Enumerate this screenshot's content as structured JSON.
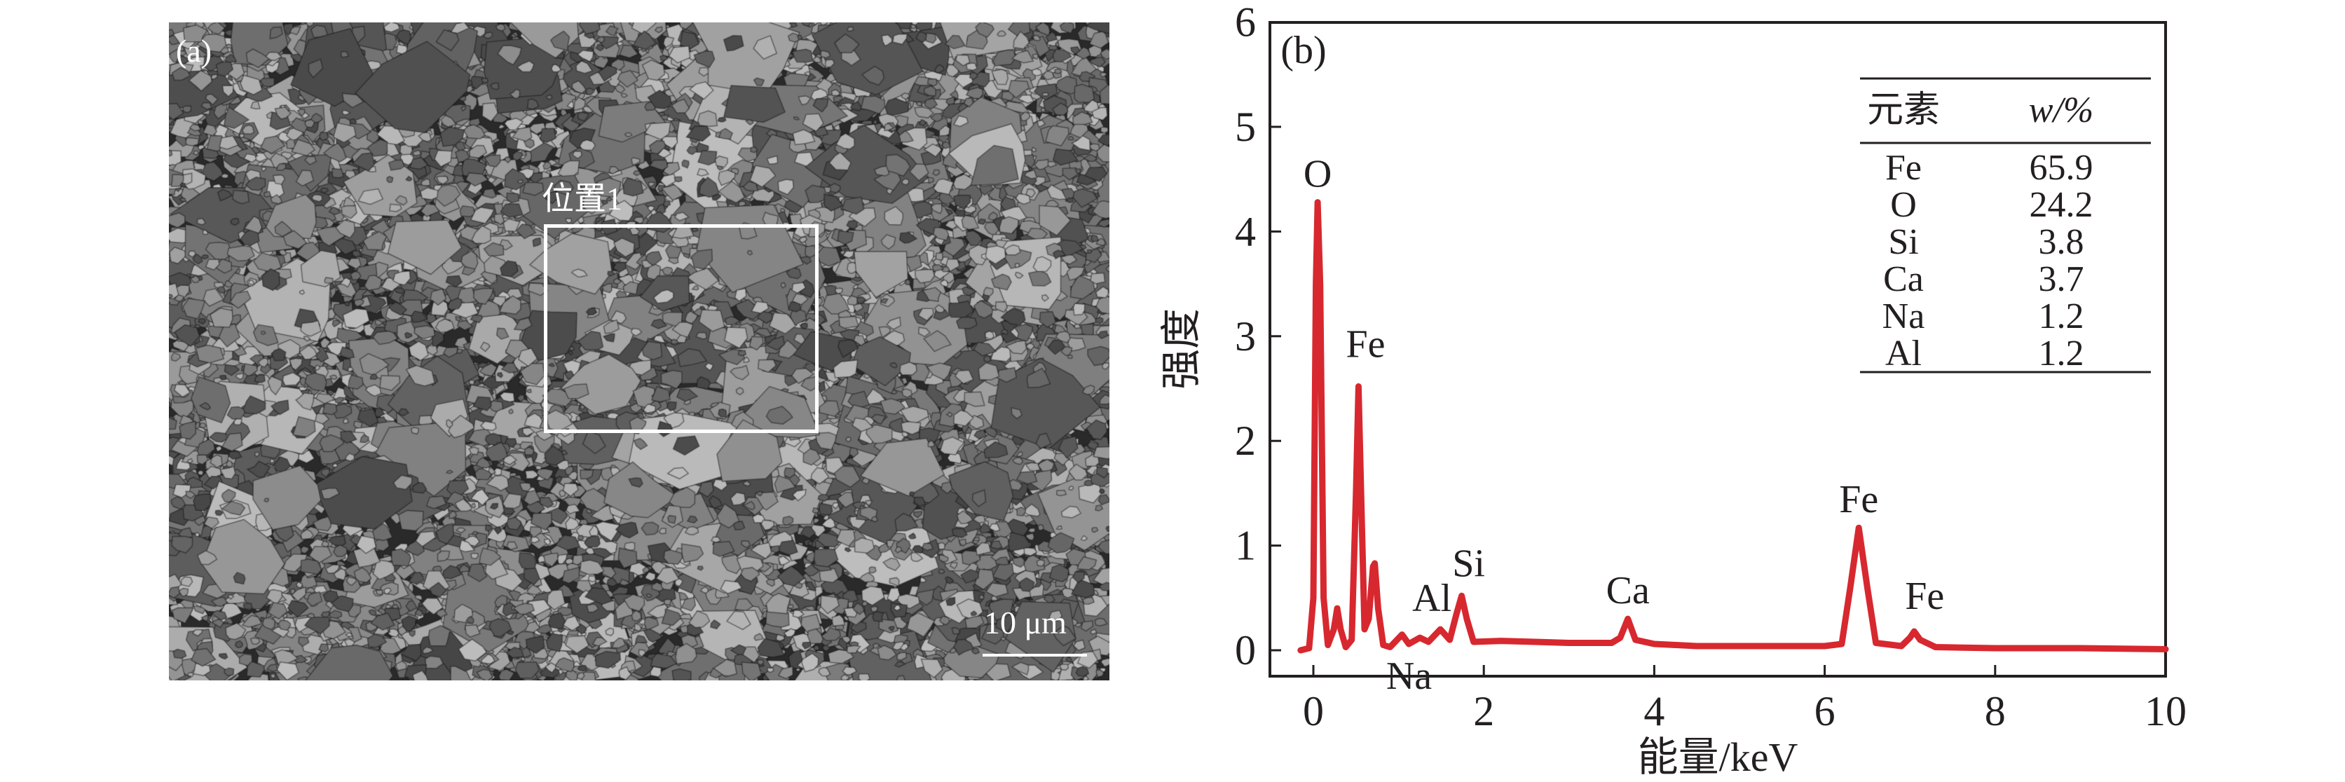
{
  "panel_a": {
    "label": "(a)",
    "region_label": "位置1",
    "scale_bar": "10 μm"
  },
  "chart_data": {
    "type": "line",
    "panel_label": "(b)",
    "xlabel": "能量/keV",
    "ylabel": "强度",
    "xlim": [
      -0.5,
      10
    ],
    "ylim": [
      -0.25,
      6
    ],
    "xticks": [
      0,
      2,
      4,
      6,
      8,
      10
    ],
    "yticks": [
      0,
      1,
      2,
      3,
      4,
      5,
      6
    ],
    "grid": false,
    "color": "#d7282f",
    "points": [
      [
        -0.15,
        0
      ],
      [
        -0.05,
        0.02
      ],
      [
        0,
        0.5
      ],
      [
        0.03,
        3.5
      ],
      [
        0.05,
        4.28
      ],
      [
        0.08,
        3.5
      ],
      [
        0.12,
        0.5
      ],
      [
        0.17,
        0.05
      ],
      [
        0.24,
        0.2
      ],
      [
        0.28,
        0.4
      ],
      [
        0.32,
        0.2
      ],
      [
        0.38,
        0.03
      ],
      [
        0.45,
        0.1
      ],
      [
        0.5,
        1.5
      ],
      [
        0.53,
        2.52
      ],
      [
        0.56,
        1.5
      ],
      [
        0.6,
        0.2
      ],
      [
        0.65,
        0.3
      ],
      [
        0.7,
        0.8
      ],
      [
        0.72,
        0.83
      ],
      [
        0.76,
        0.4
      ],
      [
        0.82,
        0.05
      ],
      [
        0.9,
        0.03
      ],
      [
        1.04,
        0.15
      ],
      [
        1.12,
        0.06
      ],
      [
        1.25,
        0.12
      ],
      [
        1.35,
        0.08
      ],
      [
        1.49,
        0.2
      ],
      [
        1.6,
        0.1
      ],
      [
        1.68,
        0.35
      ],
      [
        1.74,
        0.52
      ],
      [
        1.8,
        0.3
      ],
      [
        1.88,
        0.08
      ],
      [
        2.2,
        0.09
      ],
      [
        2.6,
        0.08
      ],
      [
        3.0,
        0.07
      ],
      [
        3.5,
        0.07
      ],
      [
        3.6,
        0.12
      ],
      [
        3.69,
        0.3
      ],
      [
        3.78,
        0.1
      ],
      [
        4.0,
        0.06
      ],
      [
        4.5,
        0.04
      ],
      [
        5.0,
        0.04
      ],
      [
        5.5,
        0.04
      ],
      [
        6.0,
        0.04
      ],
      [
        6.2,
        0.06
      ],
      [
        6.3,
        0.6
      ],
      [
        6.4,
        1.17
      ],
      [
        6.5,
        0.6
      ],
      [
        6.6,
        0.07
      ],
      [
        6.9,
        0.04
      ],
      [
        7.0,
        0.12
      ],
      [
        7.05,
        0.18
      ],
      [
        7.12,
        0.1
      ],
      [
        7.3,
        0.03
      ],
      [
        8,
        0.02
      ],
      [
        9,
        0.02
      ],
      [
        10,
        0.01
      ]
    ],
    "annotations": [
      {
        "label": "O",
        "x": 0.05
      },
      {
        "label": "Fe",
        "x": 0.53
      },
      {
        "label": "Na",
        "x": 1.04
      },
      {
        "label": "Al",
        "x": 1.49
      },
      {
        "label": "Si",
        "x": 1.74
      },
      {
        "label": "Ca",
        "x": 3.69
      },
      {
        "label": "Fe",
        "x": 6.4
      },
      {
        "label": "Fe",
        "x": 7.05
      }
    ],
    "table": {
      "headers": [
        "元素",
        "w/%"
      ],
      "rows": [
        [
          "Fe",
          "65.9"
        ],
        [
          "O",
          "24.2"
        ],
        [
          "Si",
          "3.8"
        ],
        [
          "Ca",
          "3.7"
        ],
        [
          "Na",
          "1.2"
        ],
        [
          "Al",
          "1.2"
        ]
      ]
    }
  }
}
